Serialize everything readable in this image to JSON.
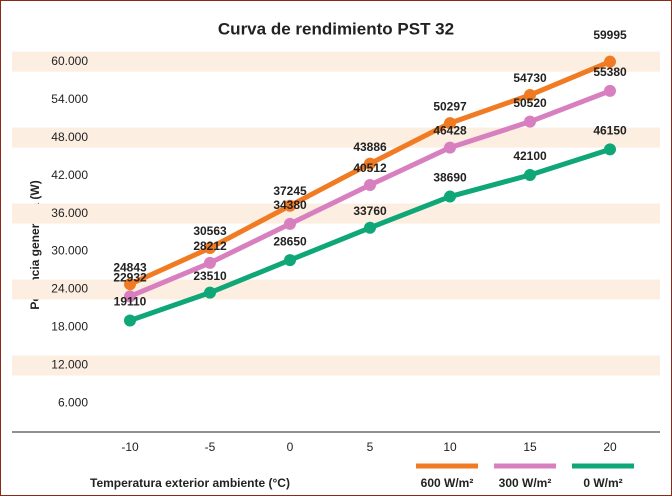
{
  "chart_data": {
    "type": "line",
    "title": "Curva de rendimiento PST 32",
    "x_label": "Temperatura exterior ambiente (°C)",
    "y_label": "Potencia generada (W)",
    "categories": [
      -10,
      -5,
      0,
      5,
      10,
      15,
      20
    ],
    "series": [
      {
        "name": "600 W/m²",
        "color": "#f07b22",
        "values": [
          24843,
          30563,
          37245,
          43886,
          50297,
          54730,
          59995
        ]
      },
      {
        "name": "300 W/m²",
        "color": "#d87fc0",
        "values": [
          22932,
          28212,
          34380,
          40512,
          46428,
          50520,
          55380
        ]
      },
      {
        "name": "0 W/m²",
        "color": "#0fa678",
        "values": [
          19110,
          23510,
          28650,
          33760,
          38690,
          42100,
          46150
        ]
      }
    ],
    "ylim": [
      1500,
      65000
    ],
    "yticks": [
      {
        "value": 6000,
        "label": "6.000"
      },
      {
        "value": 12000,
        "label": "12.000"
      },
      {
        "value": 18000,
        "label": "18.000"
      },
      {
        "value": 24000,
        "label": "24.000"
      },
      {
        "value": 30000,
        "label": "30.000"
      },
      {
        "value": 36000,
        "label": "36.000"
      },
      {
        "value": 42000,
        "label": "42.000"
      },
      {
        "value": 48000,
        "label": "48.000"
      },
      {
        "value": 54000,
        "label": "54.000"
      },
      {
        "value": 60000,
        "label": "60.000"
      }
    ],
    "grid": true
  }
}
